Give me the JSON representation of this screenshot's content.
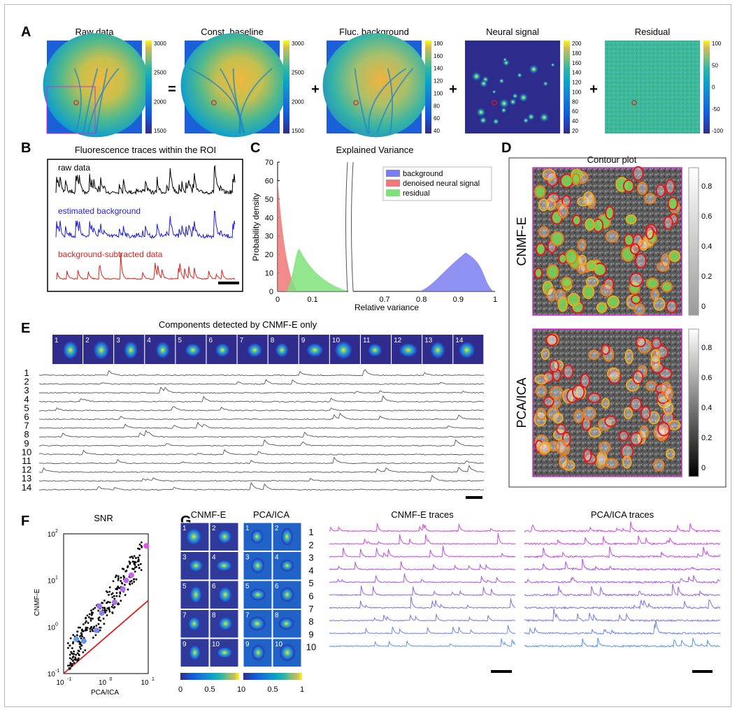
{
  "panel_letters": [
    "A",
    "B",
    "C",
    "D",
    "E",
    "F",
    "G"
  ],
  "panel_a": {
    "maps": [
      {
        "title": "Raw data",
        "ticks": [
          "3000",
          "2500",
          "2000",
          "1500"
        ]
      },
      {
        "title": "Const. baseline",
        "ticks": [
          "3000",
          "2500",
          "2000",
          "1500"
        ]
      },
      {
        "title": "Fluc. background",
        "ticks": [
          "180",
          "160",
          "140",
          "120",
          "100",
          "80",
          "60",
          "40"
        ]
      },
      {
        "title": "Neural signal",
        "ticks": [
          "200",
          "180",
          "160",
          "140",
          "120",
          "100",
          "80",
          "60",
          "40",
          "20"
        ]
      },
      {
        "title": "Residual",
        "ticks": [
          "100",
          "50",
          "0",
          "-50",
          "-100"
        ]
      }
    ],
    "operators": [
      "=",
      "+",
      "+",
      "+"
    ]
  },
  "panel_b": {
    "title": "Fluorescence traces within the ROI",
    "labels": [
      {
        "text": "raw data",
        "color": "#000000"
      },
      {
        "text": "estimated background",
        "color": "#1f1fd8"
      },
      {
        "text": "background-subtracted data",
        "color": "#e0211b"
      }
    ]
  },
  "panel_c": {
    "chart_data": {
      "type": "area",
      "title": "Explained Variance",
      "xlabel": "Relative variance",
      "ylabel": "Probability density",
      "ylim": [
        0,
        70
      ],
      "yticks": [
        "70",
        "60",
        "50",
        "40",
        "30",
        "20",
        "10",
        "0"
      ],
      "xticks_left": [
        "0",
        "0.1"
      ],
      "xticks_right": [
        "0.7",
        "0.8",
        "0.9",
        "1"
      ],
      "legend_position": "top-right",
      "series": [
        {
          "name": "background",
          "color": "#7b7ef0",
          "peak_x": 0.92,
          "peak_y": 21
        },
        {
          "name": "denoised neural signal",
          "color": "#f07878",
          "peak_x": 0.0,
          "peak_y": 60
        },
        {
          "name": "residual",
          "color": "#7ee27a",
          "peak_x": 0.06,
          "peak_y": 23
        }
      ]
    }
  },
  "panel_d": {
    "title": "Contour plot",
    "rows": [
      {
        "label": "CNMF-E",
        "ticks": [
          "0.8",
          "0.6",
          "0.4",
          "0.2",
          "0"
        ]
      },
      {
        "label": "PCA/ICA",
        "ticks": [
          "0.8",
          "0.6",
          "0.4",
          "0.2",
          "0"
        ]
      }
    ]
  },
  "panel_e": {
    "title": "Components detected by CNMF-E only",
    "tile_numbers": [
      "1",
      "2",
      "3",
      "4",
      "5",
      "6",
      "7",
      "8",
      "9",
      "10",
      "11",
      "12",
      "13",
      "14"
    ],
    "trace_numbers": [
      "1",
      "2",
      "3",
      "4",
      "5",
      "6",
      "7",
      "8",
      "9",
      "10",
      "11",
      "12",
      "13",
      "14"
    ]
  },
  "panel_f": {
    "chart_data": {
      "type": "scatter",
      "title": "SNR",
      "xlabel": "PCA/ICA",
      "ylabel": "CNMF-E",
      "xscale": "log",
      "yscale": "log",
      "xlim": [
        0.1,
        10
      ],
      "ylim": [
        0.1,
        100
      ],
      "xticks": [
        {
          "base": "10",
          "exp": "-1"
        },
        {
          "base": "10",
          "exp": "0"
        },
        {
          "base": "10",
          "exp": "1"
        }
      ],
      "yticks": [
        {
          "base": "10",
          "exp": "2"
        },
        {
          "base": "10",
          "exp": "1"
        },
        {
          "base": "10",
          "exp": "0"
        },
        {
          "base": "10",
          "exp": "-1"
        }
      ],
      "identity_line_color": "#e01b1b",
      "highlighted_points": [
        {
          "x": 0.2,
          "y": 0.55,
          "color": "#5aa0ea"
        },
        {
          "x": 0.3,
          "y": 0.5,
          "color": "#6a93ea"
        },
        {
          "x": 0.6,
          "y": 0.85,
          "color": "#7c88ea"
        },
        {
          "x": 0.8,
          "y": 2.0,
          "color": "#8b7fea"
        },
        {
          "x": 0.7,
          "y": 2.8,
          "color": "#9a78ea"
        },
        {
          "x": 1.6,
          "y": 3.4,
          "color": "#a872ea"
        },
        {
          "x": 2.5,
          "y": 6.5,
          "color": "#b66ceb"
        },
        {
          "x": 3.0,
          "y": 10.0,
          "color": "#c465eb"
        },
        {
          "x": 4.0,
          "y": 13.0,
          "color": "#d25feb"
        },
        {
          "x": 9.0,
          "y": 55.0,
          "color": "#e84fe8"
        }
      ]
    }
  },
  "panel_g": {
    "grids": [
      {
        "title": "CNMF-E",
        "numbers": [
          "1",
          "2",
          "3",
          "4",
          "5",
          "6",
          "7",
          "8",
          "9",
          "10"
        ],
        "ticks": [
          "0",
          "0.5",
          "1"
        ]
      },
      {
        "title": "PCA/ICA",
        "numbers": [
          "1",
          "2",
          "3",
          "4",
          "5",
          "6",
          "7",
          "8",
          "9",
          "10"
        ],
        "ticks": [
          "0",
          "0.5",
          "1"
        ]
      }
    ],
    "trace_numbers": [
      "1",
      "2",
      "3",
      "4",
      "5",
      "6",
      "7",
      "8",
      "9",
      "10"
    ],
    "trace_titles": [
      "CNMF-E traces",
      "PCA/ICA traces"
    ],
    "trace_colors": [
      "#d945e0",
      "#d048e0",
      "#c34ce0",
      "#b351e2",
      "#a45ae4",
      "#9562e6",
      "#856ee8",
      "#787be9",
      "#6a88ea",
      "#5c96ec"
    ]
  }
}
